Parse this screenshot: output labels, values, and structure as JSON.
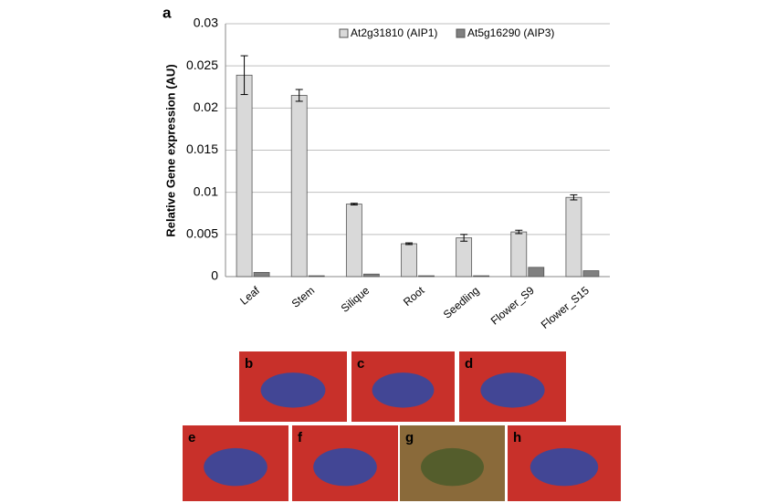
{
  "panel_label": "a",
  "photo_panels": [
    "b",
    "c",
    "d",
    "e",
    "f",
    "g",
    "h"
  ],
  "chart_data": {
    "type": "bar",
    "y_label": "Relative Gene expression (AU)",
    "categories": [
      "Leaf",
      "Stem",
      "Silique",
      "Root",
      "Seedling",
      "Flower_S9",
      "Flower_S15"
    ],
    "series": [
      {
        "name": "At2g31810 (AIP1)",
        "color": "#d9d9d9",
        "values": [
          0.0239,
          0.0215,
          0.0086,
          0.0039,
          0.0046,
          0.0053,
          0.0094
        ],
        "errors": [
          0.0023,
          0.0007,
          0.0001,
          0.0001,
          0.0004,
          0.0002,
          0.0003
        ]
      },
      {
        "name": "At5g16290 (AIP3)",
        "color": "#808080",
        "values": [
          0.0005,
          0.0001,
          0.0003,
          0.0001,
          0.0001,
          0.0011,
          0.0007
        ]
      }
    ],
    "ylim": [
      0,
      0.03
    ],
    "yticks": [
      0,
      0.005,
      0.01,
      0.015,
      0.02,
      0.025,
      0.03
    ],
    "grid": true,
    "legend": "top"
  }
}
